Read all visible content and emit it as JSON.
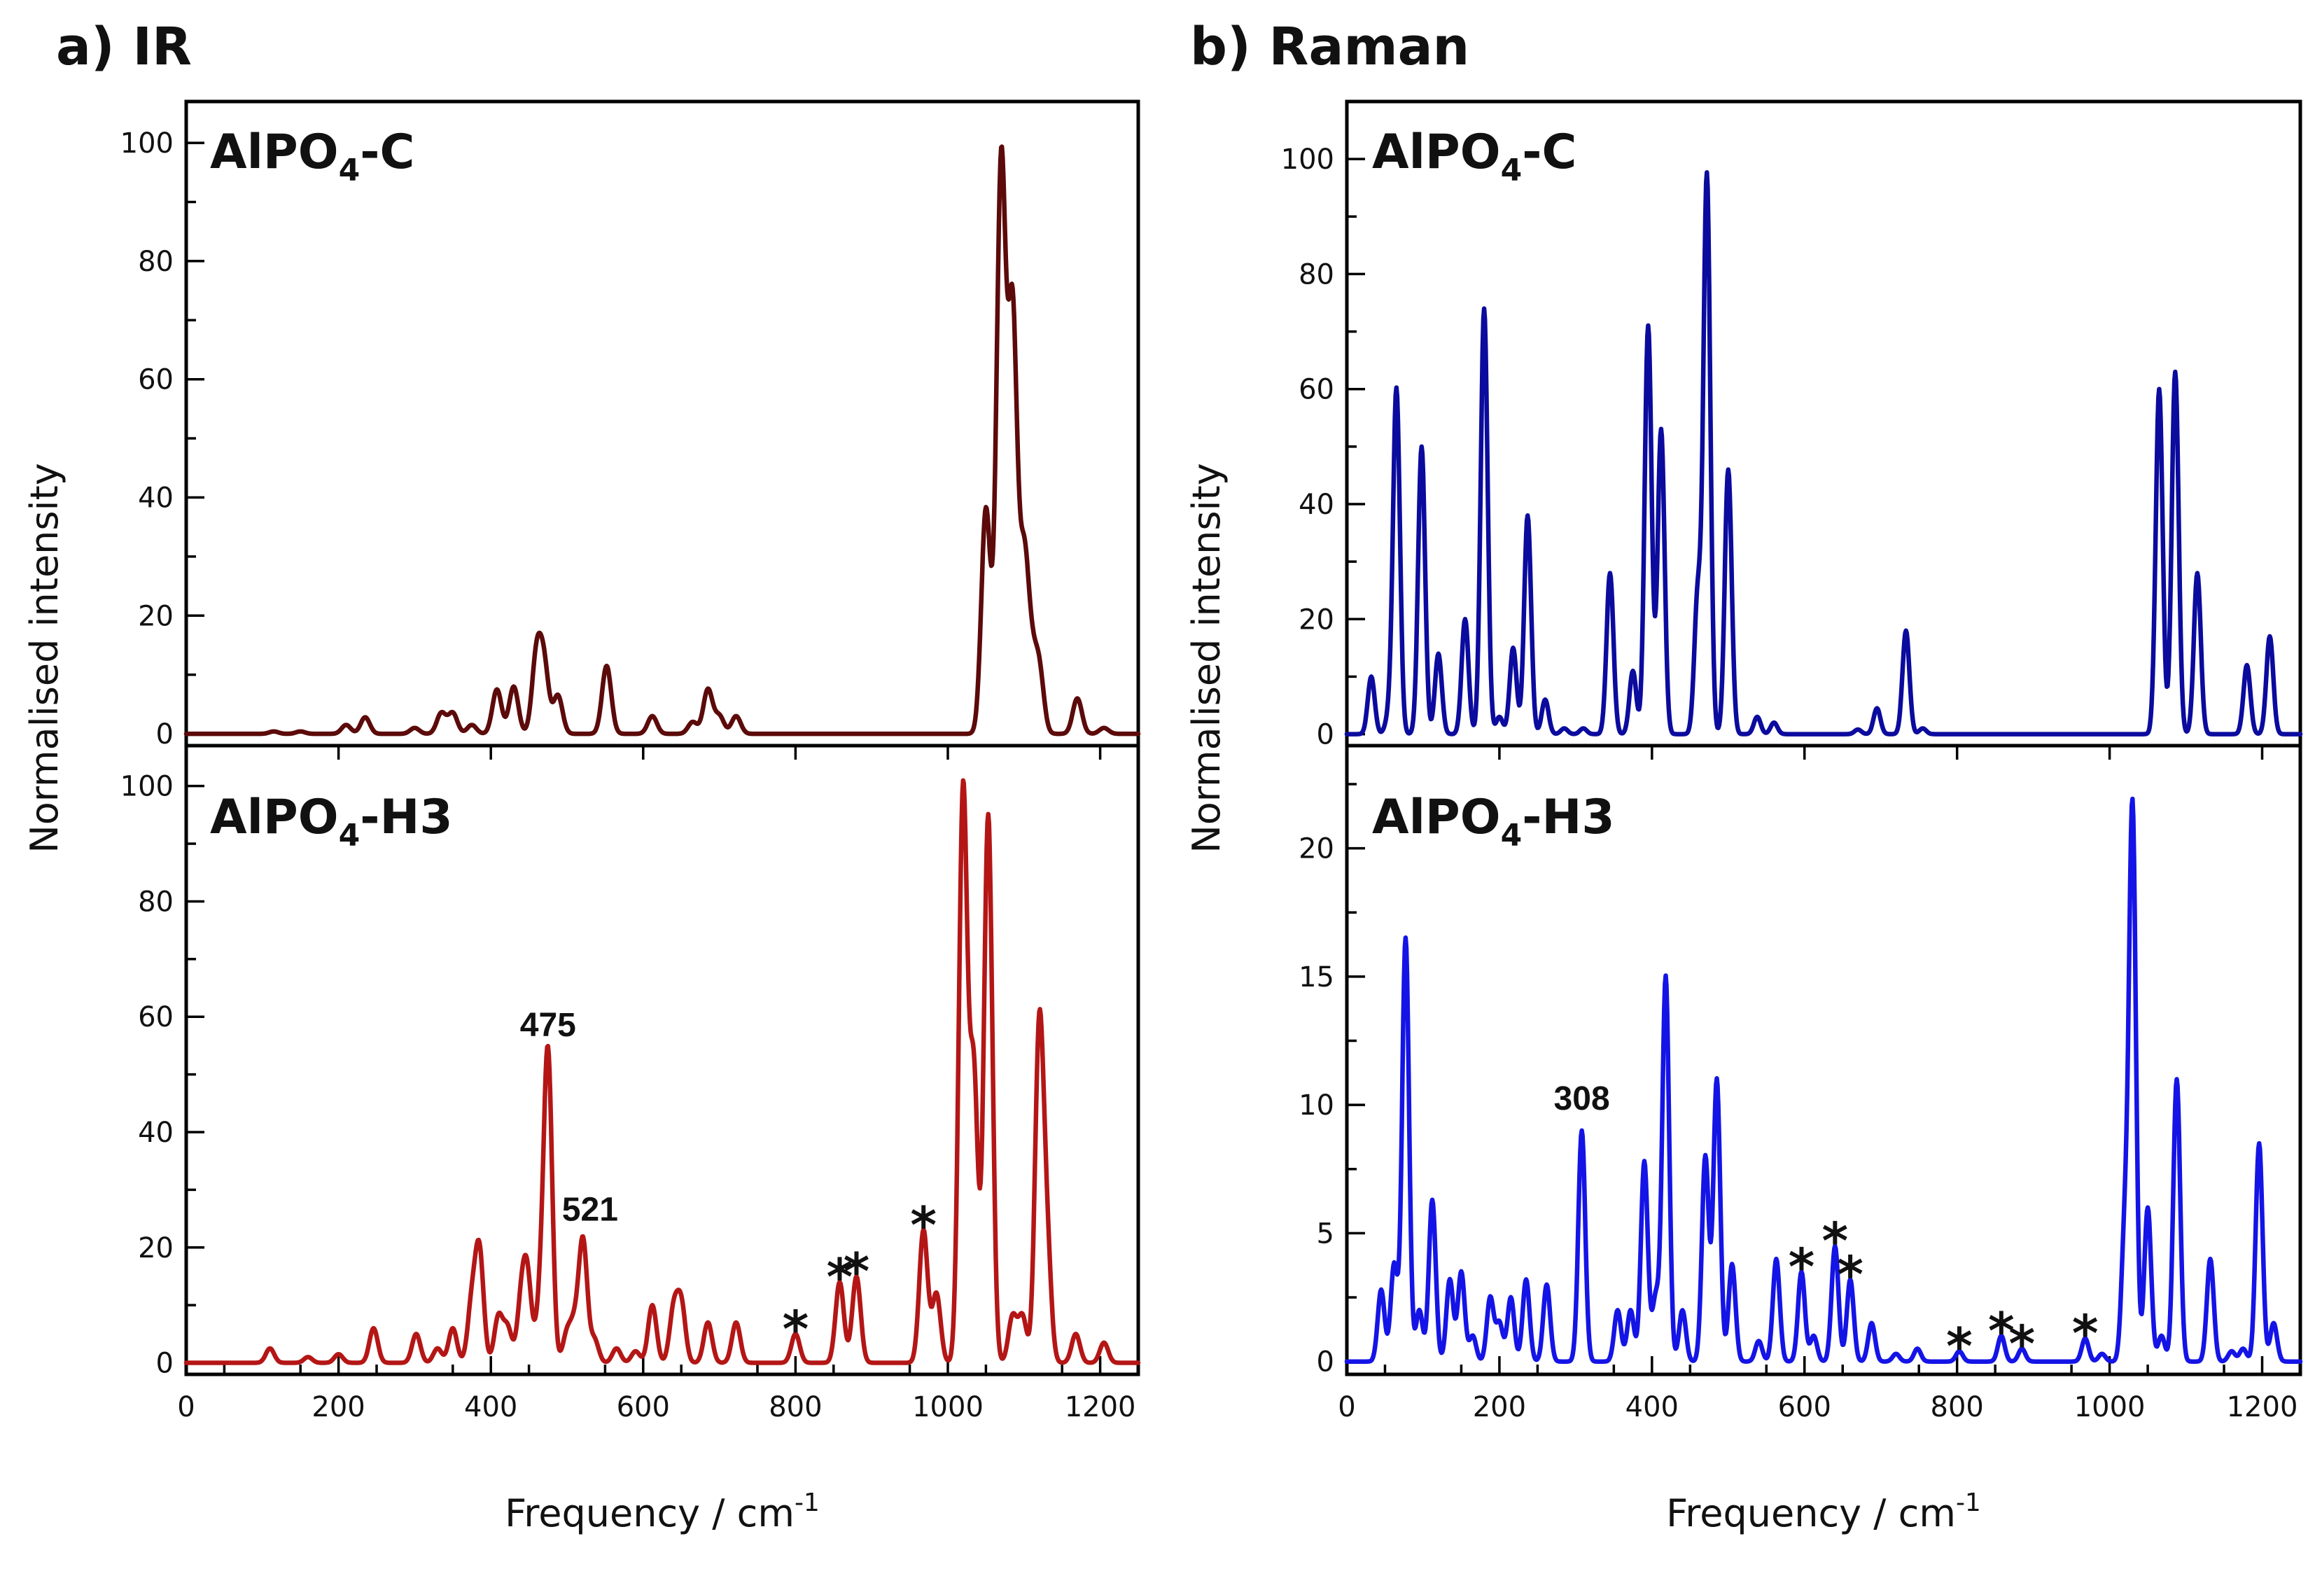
{
  "chart_data": [
    {
      "type": "line",
      "title": "a) IR",
      "xlabel": "Frequency / cm",
      "xlabel_sup": "-1",
      "ylabel": "Normalised intensity",
      "xlim": [
        0,
        1250
      ],
      "xticks": [
        0,
        200,
        400,
        600,
        800,
        1000,
        1200
      ],
      "subplots": [
        {
          "label_main": "AlPO",
          "label_sub": "4",
          "label_suffix": "-C",
          "color": "#5c0a0a",
          "ylim": [
            -2,
            107
          ],
          "yticks": [
            0,
            20,
            40,
            60,
            80,
            100
          ],
          "sigma": 6,
          "peaks": [
            [
              115,
              0.4
            ],
            [
              150,
              0.4
            ],
            [
              210,
              1.5
            ],
            [
              235,
              2.8
            ],
            [
              300,
              1
            ],
            [
              335,
              3.5
            ],
            [
              350,
              3.5
            ],
            [
              375,
              1.5
            ],
            [
              408,
              7.5
            ],
            [
              430,
              8
            ],
            [
              460,
              13
            ],
            [
              470,
              11
            ],
            [
              488,
              6.5
            ],
            [
              552,
              11.5
            ],
            [
              612,
              3
            ],
            [
              665,
              2
            ],
            [
              685,
              7.5
            ],
            [
              700,
              3
            ],
            [
              722,
              3
            ],
            [
              1050,
              38
            ],
            [
              1070,
              96
            ],
            [
              1085,
              70
            ],
            [
              1100,
              28
            ],
            [
              1110,
              10
            ],
            [
              1120,
              10.5
            ],
            [
              1170,
              6
            ],
            [
              1205,
              1
            ]
          ],
          "annotations": [],
          "stars": []
        },
        {
          "label_main": "AlPO",
          "label_sub": "4",
          "label_suffix": "-H3",
          "color": "#b41616",
          "ylim": [
            -2,
            107
          ],
          "yticks": [
            0,
            20,
            40,
            60,
            80,
            100
          ],
          "sigma": 5.5,
          "peaks": [
            [
              110,
              2.5
            ],
            [
              160,
              1
            ],
            [
              200,
              1.5
            ],
            [
              246,
              6
            ],
            [
              302,
              5
            ],
            [
              330,
              2.5
            ],
            [
              350,
              6
            ],
            [
              375,
              10
            ],
            [
              385,
              19
            ],
            [
              410,
              8
            ],
            [
              422,
              6
            ],
            [
              440,
              10
            ],
            [
              448,
              14
            ],
            [
              465,
              10
            ],
            [
              475,
              53
            ],
            [
              500,
              5
            ],
            [
              510,
              6
            ],
            [
              521,
              21
            ],
            [
              536,
              4
            ],
            [
              565,
              2.5
            ],
            [
              590,
              2
            ],
            [
              612,
              10
            ],
            [
              640,
              9
            ],
            [
              650,
              10
            ],
            [
              685,
              7
            ],
            [
              722,
              7
            ],
            [
              800,
              5
            ],
            [
              858,
              14
            ],
            [
              880,
              15
            ],
            [
              968,
              23
            ],
            [
              985,
              12
            ],
            [
              1020,
              99
            ],
            [
              1034,
              50
            ],
            [
              1053,
              95
            ],
            [
              1085,
              8
            ],
            [
              1098,
              8
            ],
            [
              1120,
              57
            ],
            [
              1130,
              20
            ],
            [
              1168,
              5
            ],
            [
              1205,
              3.5
            ]
          ],
          "annotations": [
            {
              "x": 475,
              "y": 53,
              "text": "475"
            },
            {
              "x": 521,
              "y": 21,
              "text": "521"
            }
          ],
          "stars": [
            {
              "x": 800,
              "y": 5
            },
            {
              "x": 858,
              "y": 14
            },
            {
              "x": 880,
              "y": 15
            },
            {
              "x": 968,
              "y": 23
            }
          ]
        }
      ]
    },
    {
      "type": "line",
      "title": "b) Raman",
      "xlabel": "Frequency / cm",
      "xlabel_sup": "-1",
      "ylabel": "Normalised intensity",
      "xlim": [
        0,
        1250
      ],
      "xticks": [
        0,
        200,
        400,
        600,
        800,
        1000,
        1200
      ],
      "subplots": [
        {
          "label_main": "AlPO",
          "label_sub": "4",
          "label_suffix": "-C",
          "color": "#0b0b9e",
          "ylim": [
            -2,
            110
          ],
          "yticks": [
            0,
            20,
            40,
            60,
            80,
            100
          ],
          "sigma": 4.5,
          "peaks": [
            [
              32,
              10
            ],
            [
              55,
              3
            ],
            [
              65,
              60
            ],
            [
              98,
              50
            ],
            [
              120,
              14
            ],
            [
              155,
              20
            ],
            [
              180,
              74
            ],
            [
              200,
              3
            ],
            [
              218,
              15
            ],
            [
              237,
              38
            ],
            [
              260,
              6
            ],
            [
              285,
              1
            ],
            [
              310,
              1
            ],
            [
              345,
              28
            ],
            [
              375,
              11
            ],
            [
              395,
              71
            ],
            [
              412,
              53
            ],
            [
              460,
              24
            ],
            [
              472,
              97
            ],
            [
              500,
              46
            ],
            [
              538,
              3
            ],
            [
              560,
              2
            ],
            [
              670,
              0.8
            ],
            [
              695,
              4.5
            ],
            [
              733,
              18
            ],
            [
              755,
              1
            ],
            [
              1065,
              60
            ],
            [
              1086,
              63
            ],
            [
              1115,
              28
            ],
            [
              1180,
              12
            ],
            [
              1210,
              17
            ]
          ],
          "annotations": [],
          "stars": []
        },
        {
          "label_main": "AlPO",
          "label_sub": "4",
          "label_suffix": "-H3",
          "color": "#1414e6",
          "ylim": [
            -0.5,
            24
          ],
          "yticks": [
            0,
            5,
            10,
            15,
            20
          ],
          "sigma": 4.5,
          "peaks": [
            [
              45,
              2.8
            ],
            [
              62,
              3.8
            ],
            [
              77,
              16.5
            ],
            [
              95,
              2
            ],
            [
              112,
              6.3
            ],
            [
              135,
              3.2
            ],
            [
              150,
              3.5
            ],
            [
              165,
              1
            ],
            [
              188,
              2.5
            ],
            [
              200,
              1.5
            ],
            [
              215,
              2.5
            ],
            [
              235,
              3.2
            ],
            [
              262,
              3
            ],
            [
              308,
              9
            ],
            [
              355,
              2
            ],
            [
              372,
              2
            ],
            [
              390,
              7.8
            ],
            [
              405,
              2.5
            ],
            [
              418,
              15
            ],
            [
              440,
              2
            ],
            [
              470,
              8
            ],
            [
              485,
              11
            ],
            [
              505,
              3.8
            ],
            [
              540,
              0.8
            ],
            [
              563,
              4
            ],
            [
              596,
              3.5
            ],
            [
              612,
              1
            ],
            [
              640,
              4.5
            ],
            [
              660,
              3.2
            ],
            [
              688,
              1.5
            ],
            [
              720,
              0.3
            ],
            [
              748,
              0.5
            ],
            [
              803,
              0.4
            ],
            [
              858,
              1
            ],
            [
              885,
              0.5
            ],
            [
              968,
              0.9
            ],
            [
              990,
              0.3
            ],
            [
              1020,
              5
            ],
            [
              1030,
              21.5
            ],
            [
              1050,
              6
            ],
            [
              1068,
              1
            ],
            [
              1088,
              11
            ],
            [
              1132,
              4
            ],
            [
              1160,
              0.4
            ],
            [
              1175,
              0.5
            ],
            [
              1196,
              8.5
            ],
            [
              1215,
              1.5
            ]
          ],
          "annotations": [
            {
              "x": 308,
              "y": 9,
              "text": "308"
            }
          ],
          "stars": [
            {
              "x": 596,
              "y": 3.5
            },
            {
              "x": 640,
              "y": 4.5
            },
            {
              "x": 660,
              "y": 3.2
            },
            {
              "x": 803,
              "y": 0.4
            },
            {
              "x": 858,
              "y": 1
            },
            {
              "x": 885,
              "y": 0.5
            },
            {
              "x": 968,
              "y": 0.9
            }
          ]
        }
      ]
    }
  ]
}
